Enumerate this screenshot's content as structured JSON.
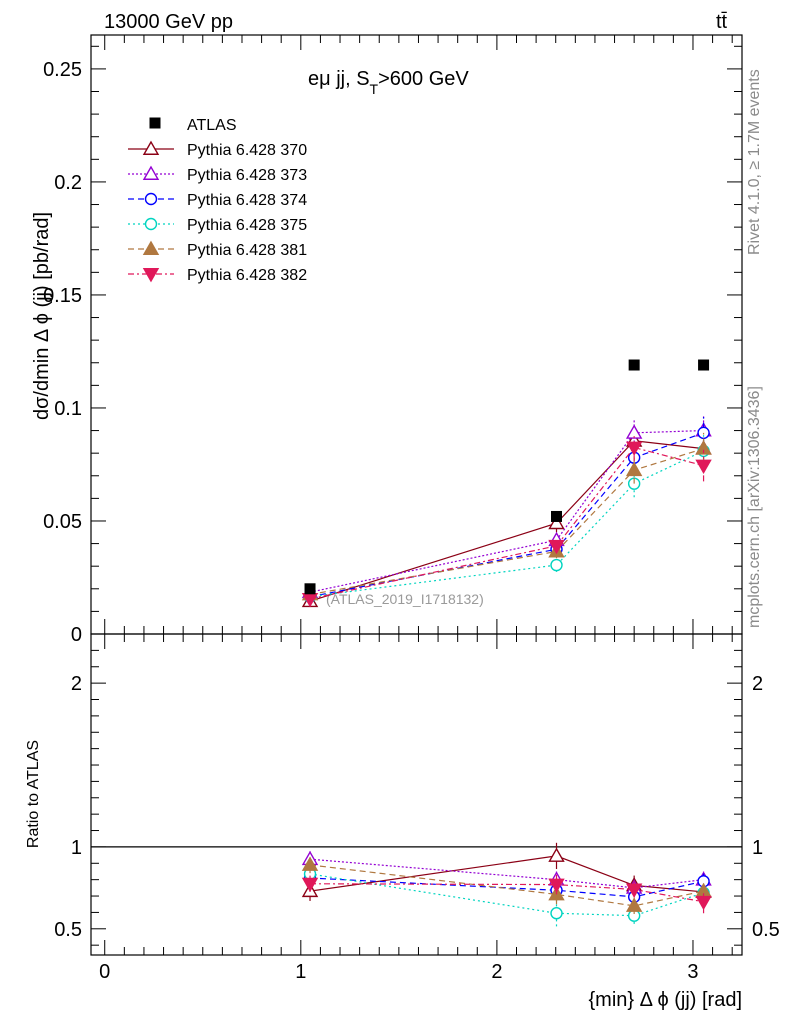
{
  "header": {
    "energy_label": "13000 GeV pp",
    "process_label": "tt̄",
    "side_label_rivet": "Rivet 4.1.0, ≥ 1.7M events",
    "side_label_mcplots": "mcplots.cern.ch [arXiv:1306.3436]"
  },
  "chart_data": {
    "type": "scatter",
    "title_main": "eμ jj, S",
    "title_sub": "T",
    "title_rest": ">600 GeV",
    "analysis_label": "(ATLAS_2019_I1718132)",
    "ylabel": "dσ/dmin Δ ϕ (jj) [pb/rad]",
    "ratio_ylabel": "Ratio to ATLAS",
    "xlabel": "{min} Δ ϕ (jj) [rad]",
    "xlim": [
      -0.07,
      3.25
    ],
    "ylim": [
      0,
      0.265
    ],
    "ratio_ylim": [
      0.34,
      2.3
    ],
    "x_ticks": [
      0,
      1,
      2,
      3
    ],
    "x_tick_labels": [
      "0",
      "1",
      "2",
      "3"
    ],
    "y_ticks": [
      0,
      0.05,
      0.1,
      0.15,
      0.2,
      0.25
    ],
    "y_tick_labels": [
      "0",
      "0.05",
      "0.1",
      "0.15",
      "0.2",
      "0.25"
    ],
    "ratio_ticks": [
      0.5,
      1,
      2
    ],
    "ratio_tick_labels": [
      "0.5",
      "1",
      "2"
    ],
    "x": [
      1.047,
      2.304,
      2.7,
      3.054
    ],
    "data": {
      "name": "ATLAS",
      "values": [
        0.02,
        0.052,
        0.119,
        0.119
      ],
      "color": "#000000"
    },
    "series": [
      {
        "name": "Pythia 6.428 370",
        "color": "#8b0015",
        "dash": "",
        "marker": "triangle-up-open",
        "values": [
          0.0145,
          0.049,
          0.0855,
          0.082
        ],
        "errors": [
          0.0015,
          0.004,
          0.006,
          0.006
        ],
        "ratio": [
          0.73,
          0.945,
          0.765,
          0.725
        ],
        "ratio_errors": [
          0.06,
          0.08,
          0.06,
          0.05
        ]
      },
      {
        "name": "Pythia 6.428 373",
        "color": "#9400d3",
        "dash": "2,2",
        "marker": "triangle-up-open",
        "values": [
          0.0185,
          0.0415,
          0.089,
          0.09
        ],
        "errors": [
          0.0015,
          0.003,
          0.006,
          0.007
        ],
        "ratio": [
          0.925,
          0.8,
          0.75,
          0.8
        ],
        "ratio_errors": [
          0.05,
          0.06,
          0.05,
          0.05
        ]
      },
      {
        "name": "Pythia 6.428 374",
        "color": "#0000ff",
        "dash": "6,4",
        "marker": "circle-open",
        "values": [
          0.0165,
          0.0375,
          0.078,
          0.089
        ],
        "errors": [
          0.0015,
          0.003,
          0.006,
          0.007
        ],
        "ratio": [
          0.81,
          0.735,
          0.695,
          0.79
        ],
        "ratio_errors": [
          0.05,
          0.06,
          0.05,
          0.05
        ]
      },
      {
        "name": "Pythia 6.428 375",
        "color": "#00d4c0",
        "dash": "2,3",
        "marker": "circle-open",
        "values": [
          0.0165,
          0.0305,
          0.0665,
          0.081
        ],
        "errors": [
          0.0015,
          0.003,
          0.006,
          0.007
        ],
        "ratio": [
          0.835,
          0.595,
          0.58,
          0.72
        ],
        "ratio_errors": [
          0.05,
          0.08,
          0.05,
          0.05
        ]
      },
      {
        "name": "Pythia 6.428 381",
        "color": "#b07840",
        "dash": "6,4",
        "marker": "triangle-up-filled",
        "values": [
          0.0175,
          0.0365,
          0.0725,
          0.082
        ],
        "errors": [
          0.0015,
          0.003,
          0.006,
          0.007
        ],
        "ratio": [
          0.89,
          0.71,
          0.64,
          0.73
        ],
        "ratio_errors": [
          0.05,
          0.06,
          0.05,
          0.05
        ]
      },
      {
        "name": "Pythia 6.428 382",
        "color": "#e0185a",
        "dash": "6,3,2,3",
        "marker": "triangle-down-filled",
        "values": [
          0.0155,
          0.039,
          0.0825,
          0.0745
        ],
        "errors": [
          0.0015,
          0.003,
          0.006,
          0.007
        ],
        "ratio": [
          0.775,
          0.77,
          0.74,
          0.665
        ],
        "ratio_errors": [
          0.05,
          0.06,
          0.05,
          0.07
        ]
      }
    ]
  }
}
